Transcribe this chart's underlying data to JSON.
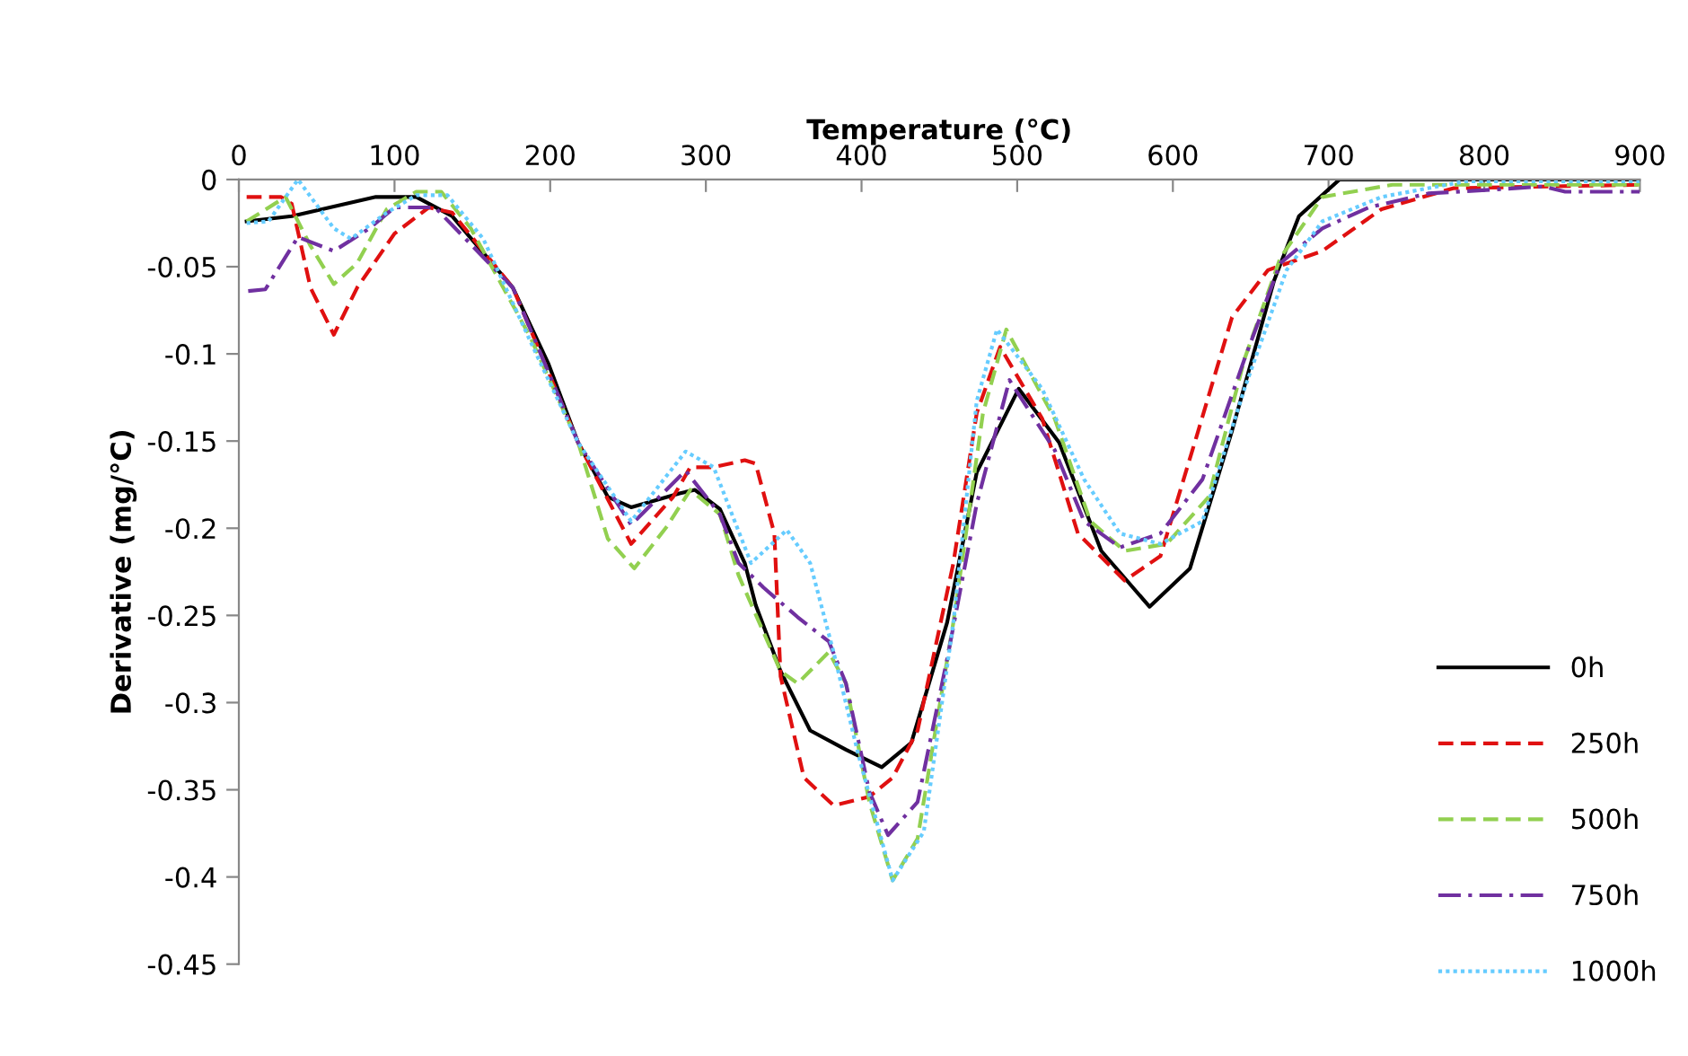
{
  "chart_data": {
    "type": "line",
    "xlabel": "Temperature (°C)",
    "ylabel": "Derivative (mg/°C)",
    "xlim": [
      0,
      900
    ],
    "xticks": [
      0,
      100,
      200,
      300,
      400,
      500,
      600,
      700,
      800,
      900
    ],
    "ylim": [
      -0.45,
      0
    ],
    "yticks": [
      0,
      -0.05,
      -0.1,
      -0.15,
      -0.2,
      -0.25,
      -0.3,
      -0.35,
      -0.4,
      -0.45
    ],
    "grid": false,
    "legend": "bottom right",
    "marker": "none",
    "series": [
      {
        "name": "0h",
        "color": "#000000",
        "line_style": "solid",
        "x": [
          5,
          34,
          88,
          114,
          137,
          176,
          199,
          218,
          237,
          252,
          283,
          293,
          309,
          325,
          332,
          348,
          367,
          390,
          413,
          432,
          455,
          474,
          501,
          527,
          554,
          585,
          611,
          638,
          665,
          681,
          707,
          800,
          900
        ],
        "values": [
          -0.024,
          -0.021,
          -0.01,
          -0.01,
          -0.021,
          -0.062,
          -0.106,
          -0.151,
          -0.182,
          -0.188,
          -0.18,
          -0.178,
          -0.189,
          -0.22,
          -0.244,
          -0.282,
          -0.316,
          -0.327,
          -0.337,
          -0.323,
          -0.254,
          -0.168,
          -0.12,
          -0.151,
          -0.213,
          -0.245,
          -0.223,
          -0.144,
          -0.058,
          -0.021,
          0,
          0,
          0
        ]
      },
      {
        "name": "250h",
        "color": "#e01010",
        "line_style": "dashed",
        "x": [
          5,
          27,
          34,
          46,
          61,
          76,
          100,
          122,
          137,
          176,
          218,
          252,
          279,
          290,
          305,
          325,
          332,
          344,
          348,
          363,
          382,
          405,
          420,
          436,
          459,
          474,
          489,
          516,
          539,
          569,
          592,
          615,
          638,
          661,
          696,
          734,
          780,
          900
        ],
        "values": [
          -0.01,
          -0.01,
          -0.014,
          -0.062,
          -0.089,
          -0.062,
          -0.031,
          -0.016,
          -0.019,
          -0.062,
          -0.151,
          -0.209,
          -0.182,
          -0.165,
          -0.165,
          -0.161,
          -0.163,
          -0.203,
          -0.285,
          -0.343,
          -0.359,
          -0.354,
          -0.343,
          -0.316,
          -0.22,
          -0.134,
          -0.096,
          -0.137,
          -0.203,
          -0.23,
          -0.216,
          -0.148,
          -0.079,
          -0.052,
          -0.041,
          -0.017,
          -0.005,
          -0.003
        ]
      },
      {
        "name": "500h",
        "color": "#92d050",
        "line_style": "dashed",
        "x": [
          5,
          30,
          46,
          61,
          76,
          95,
          114,
          130,
          149,
          187,
          218,
          237,
          254,
          275,
          290,
          309,
          321,
          348,
          359,
          379,
          390,
          405,
          420,
          436,
          459,
          478,
          493,
          524,
          547,
          569,
          596,
          623,
          646,
          669,
          696,
          741,
          900
        ],
        "values": [
          -0.024,
          -0.01,
          -0.038,
          -0.06,
          -0.048,
          -0.017,
          -0.007,
          -0.007,
          -0.028,
          -0.09,
          -0.151,
          -0.206,
          -0.223,
          -0.199,
          -0.178,
          -0.192,
          -0.227,
          -0.282,
          -0.289,
          -0.271,
          -0.289,
          -0.357,
          -0.402,
          -0.378,
          -0.254,
          -0.134,
          -0.086,
          -0.137,
          -0.196,
          -0.213,
          -0.209,
          -0.182,
          -0.103,
          -0.045,
          -0.01,
          -0.003,
          -0.003
        ]
      },
      {
        "name": "750h",
        "color": "#7030a0",
        "line_style": "dashdot",
        "x": [
          6,
          17,
          38,
          61,
          84,
          100,
          126,
          176,
          218,
          252,
          287,
          309,
          321,
          337,
          359,
          379,
          390,
          405,
          417,
          436,
          455,
          474,
          495,
          524,
          543,
          566,
          592,
          619,
          646,
          669,
          696,
          726,
          764,
          838,
          852,
          900
        ],
        "values": [
          -0.064,
          -0.063,
          -0.033,
          -0.041,
          -0.028,
          -0.016,
          -0.016,
          -0.062,
          -0.151,
          -0.198,
          -0.167,
          -0.192,
          -0.22,
          -0.234,
          -0.251,
          -0.265,
          -0.289,
          -0.351,
          -0.376,
          -0.357,
          -0.275,
          -0.186,
          -0.115,
          -0.155,
          -0.196,
          -0.211,
          -0.203,
          -0.172,
          -0.103,
          -0.048,
          -0.028,
          -0.016,
          -0.008,
          -0.004,
          -0.007,
          -0.007
        ]
      },
      {
        "name": "1000h",
        "color": "#66ccff",
        "line_style": "dotted",
        "x": [
          5,
          19,
          38,
          61,
          72,
          95,
          114,
          134,
          157,
          191,
          218,
          252,
          287,
          305,
          329,
          352,
          367,
          382,
          398,
          420,
          440,
          459,
          474,
          487,
          516,
          543,
          566,
          592,
          619,
          646,
          673,
          696,
          734,
          788,
          900
        ],
        "values": [
          -0.025,
          -0.024,
          0,
          -0.028,
          -0.034,
          -0.019,
          -0.009,
          -0.009,
          -0.034,
          -0.1,
          -0.151,
          -0.196,
          -0.156,
          -0.165,
          -0.22,
          -0.201,
          -0.22,
          -0.271,
          -0.33,
          -0.402,
          -0.374,
          -0.254,
          -0.127,
          -0.086,
          -0.12,
          -0.172,
          -0.203,
          -0.209,
          -0.196,
          -0.12,
          -0.052,
          -0.024,
          -0.01,
          -0.001,
          -0.001
        ]
      }
    ]
  }
}
